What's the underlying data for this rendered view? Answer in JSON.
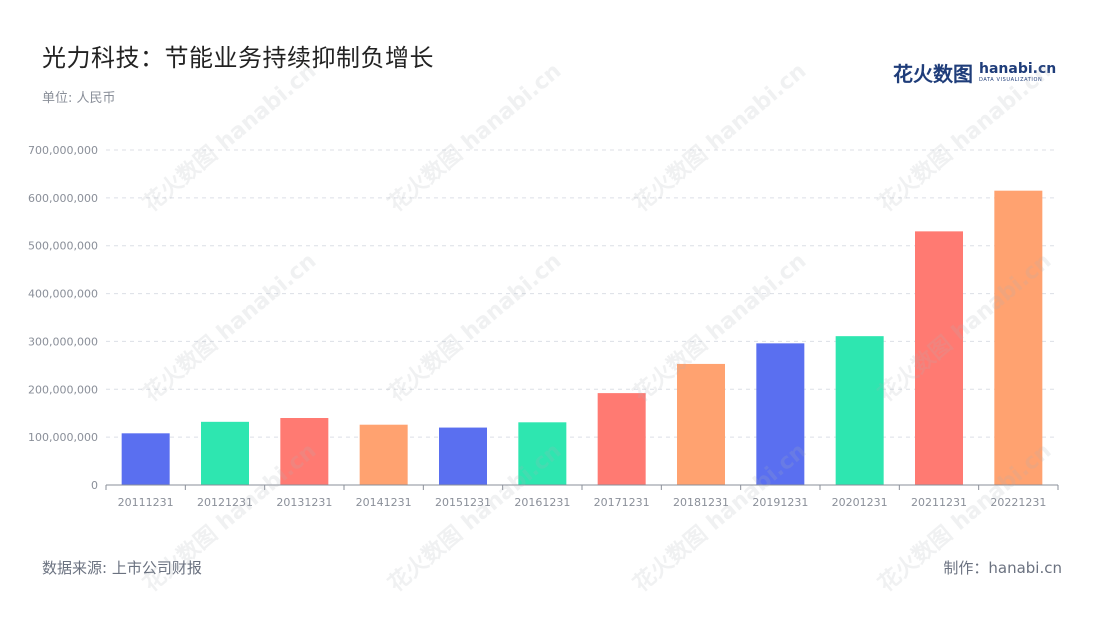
{
  "header": {
    "title": "光力科技：节能业务持续抑制负增长",
    "unit": "单位: 人民币"
  },
  "brand": {
    "cn": "花火数图",
    "en": "hanabi.cn",
    "sub": "DATA VISUALIZATION"
  },
  "footer": {
    "source": "数据来源: 上市公司财报",
    "maker": "制作：hanabi.cn"
  },
  "watermark": "花火数图 hanabi.cn",
  "colors": {
    "blue": "#5a6ff0",
    "green": "#2ee6b0",
    "red": "#ff7a72",
    "orange": "#ffa270"
  },
  "chart_data": {
    "type": "bar",
    "categories": [
      "20111231",
      "20121231",
      "20131231",
      "20141231",
      "20151231",
      "20161231",
      "20171231",
      "20181231",
      "20191231",
      "20201231",
      "20211231",
      "20221231"
    ],
    "values": [
      108000000,
      132000000,
      140000000,
      126000000,
      120000000,
      131000000,
      192000000,
      253000000,
      296000000,
      311000000,
      530000000,
      615000000
    ],
    "bar_colors": [
      "#5a6ff0",
      "#2ee6b0",
      "#ff7a72",
      "#ffa270",
      "#5a6ff0",
      "#2ee6b0",
      "#ff7a72",
      "#ffa270",
      "#5a6ff0",
      "#2ee6b0",
      "#ff7a72",
      "#ffa270"
    ],
    "ylim": [
      0,
      700000000
    ],
    "yticks": [
      0,
      100000000,
      200000000,
      300000000,
      400000000,
      500000000,
      600000000,
      700000000
    ],
    "ytick_labels": [
      "0",
      "100,000,000",
      "200,000,000",
      "300,000,000",
      "400,000,000",
      "500,000,000",
      "600,000,000",
      "700,000,000"
    ],
    "title": "光力科技：节能业务持续抑制负增长",
    "xlabel": "",
    "ylabel": "",
    "grid": true
  }
}
